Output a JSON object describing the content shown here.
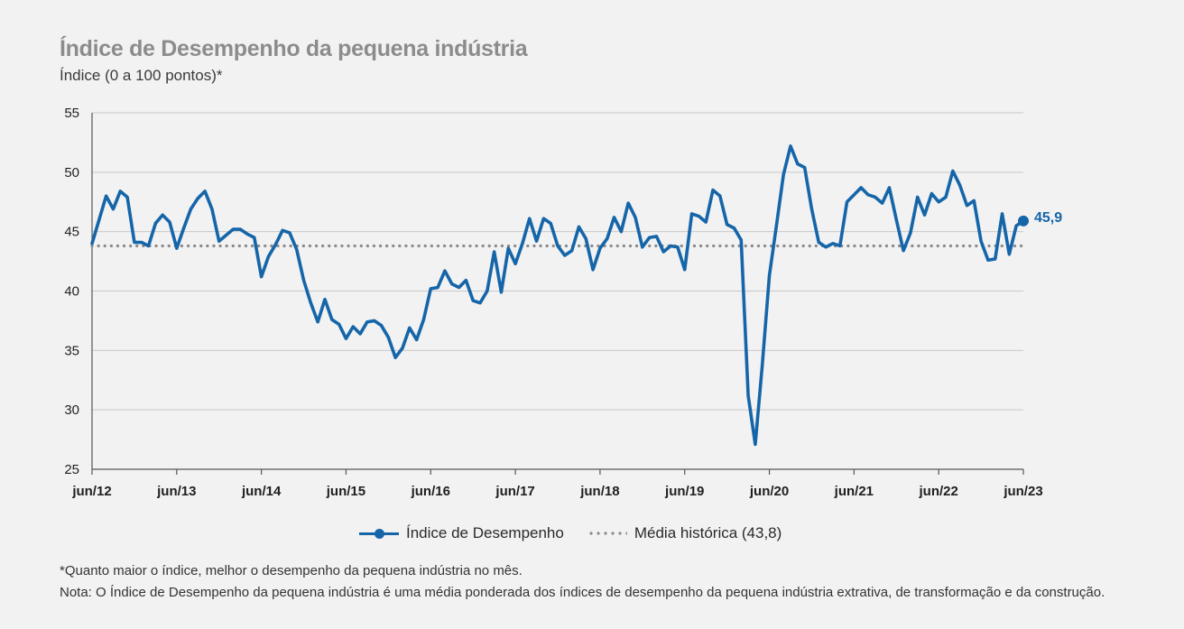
{
  "title": "Índice de Desempenho da pequena indústria",
  "subtitle": "Índice (0 a 100 pontos)*",
  "legend": {
    "series_label": "Índice de Desempenho",
    "average_label": "Média histórica (43,8)"
  },
  "last_value_label": "45,9",
  "footnotes": {
    "note1": "*Quanto maior o índice, melhor o desempenho da pequena indústria no mês.",
    "note2": "Nota: O Índice de Desempenho da pequena indústria é uma média ponderada dos índices de desempenho da pequena indústria extrativa, de transformação e da construção."
  },
  "colors": {
    "series": "#1565a9",
    "average": "#8a8a8a",
    "grid": "#c8c8c8",
    "background": "#f2f2f2"
  },
  "chart_data": {
    "type": "line",
    "title": "Índice de Desempenho da pequena indústria",
    "ylabel": "Índice (0 a 100 pontos)*",
    "ylim": [
      25,
      55
    ],
    "yticks": [
      25,
      30,
      35,
      40,
      45,
      50,
      55
    ],
    "xticks": [
      "jun/12",
      "jun/13",
      "jun/14",
      "jun/15",
      "jun/16",
      "jun/17",
      "jun/18",
      "jun/19",
      "jun/20",
      "jun/21",
      "jun/22",
      "jun/23"
    ],
    "x_start": "jun/12",
    "x_end": "jun/23",
    "frequency": "monthly",
    "grid": true,
    "legend_position": "bottom",
    "series": [
      {
        "name": "Índice de Desempenho",
        "values": [
          44.0,
          46.0,
          48.0,
          46.9,
          48.4,
          47.9,
          44.1,
          44.1,
          43.8,
          45.7,
          46.4,
          45.8,
          43.6,
          45.3,
          46.9,
          47.8,
          48.4,
          46.9,
          44.2,
          44.7,
          45.2,
          45.2,
          44.8,
          44.5,
          41.2,
          42.9,
          43.9,
          45.1,
          44.9,
          43.5,
          40.9,
          39.0,
          37.4,
          39.3,
          37.6,
          37.2,
          36.0,
          37.0,
          36.4,
          37.4,
          37.5,
          37.1,
          36.1,
          34.4,
          35.2,
          36.9,
          35.9,
          37.6,
          40.2,
          40.3,
          41.7,
          40.6,
          40.3,
          40.9,
          39.2,
          39.0,
          40.0,
          43.3,
          39.9,
          43.6,
          42.3,
          44.0,
          46.1,
          44.2,
          46.1,
          45.7,
          43.8,
          43.0,
          43.4,
          45.4,
          44.4,
          41.8,
          43.6,
          44.4,
          46.2,
          45.0,
          47.4,
          46.2,
          43.7,
          44.5,
          44.6,
          43.3,
          43.8,
          43.7,
          41.8,
          46.5,
          46.3,
          45.8,
          48.5,
          48.0,
          45.6,
          45.3,
          44.3,
          31.2,
          27.1,
          33.8,
          41.3,
          45.5,
          49.8,
          52.2,
          50.7,
          50.4,
          46.9,
          44.1,
          43.7,
          44.0,
          43.8,
          47.5,
          48.1,
          48.7,
          48.1,
          47.9,
          47.4,
          48.7,
          46.0,
          43.4,
          44.9,
          47.9,
          46.4,
          48.2,
          47.5,
          47.9,
          50.1,
          48.9,
          47.2,
          47.6,
          44.2,
          42.6,
          42.7,
          46.5,
          43.1,
          45.5,
          45.9
        ]
      },
      {
        "name": "Média histórica (43,8)",
        "constant": 43.8
      }
    ],
    "annotations": [
      {
        "label": "45,9",
        "at": "jun/23"
      }
    ]
  }
}
